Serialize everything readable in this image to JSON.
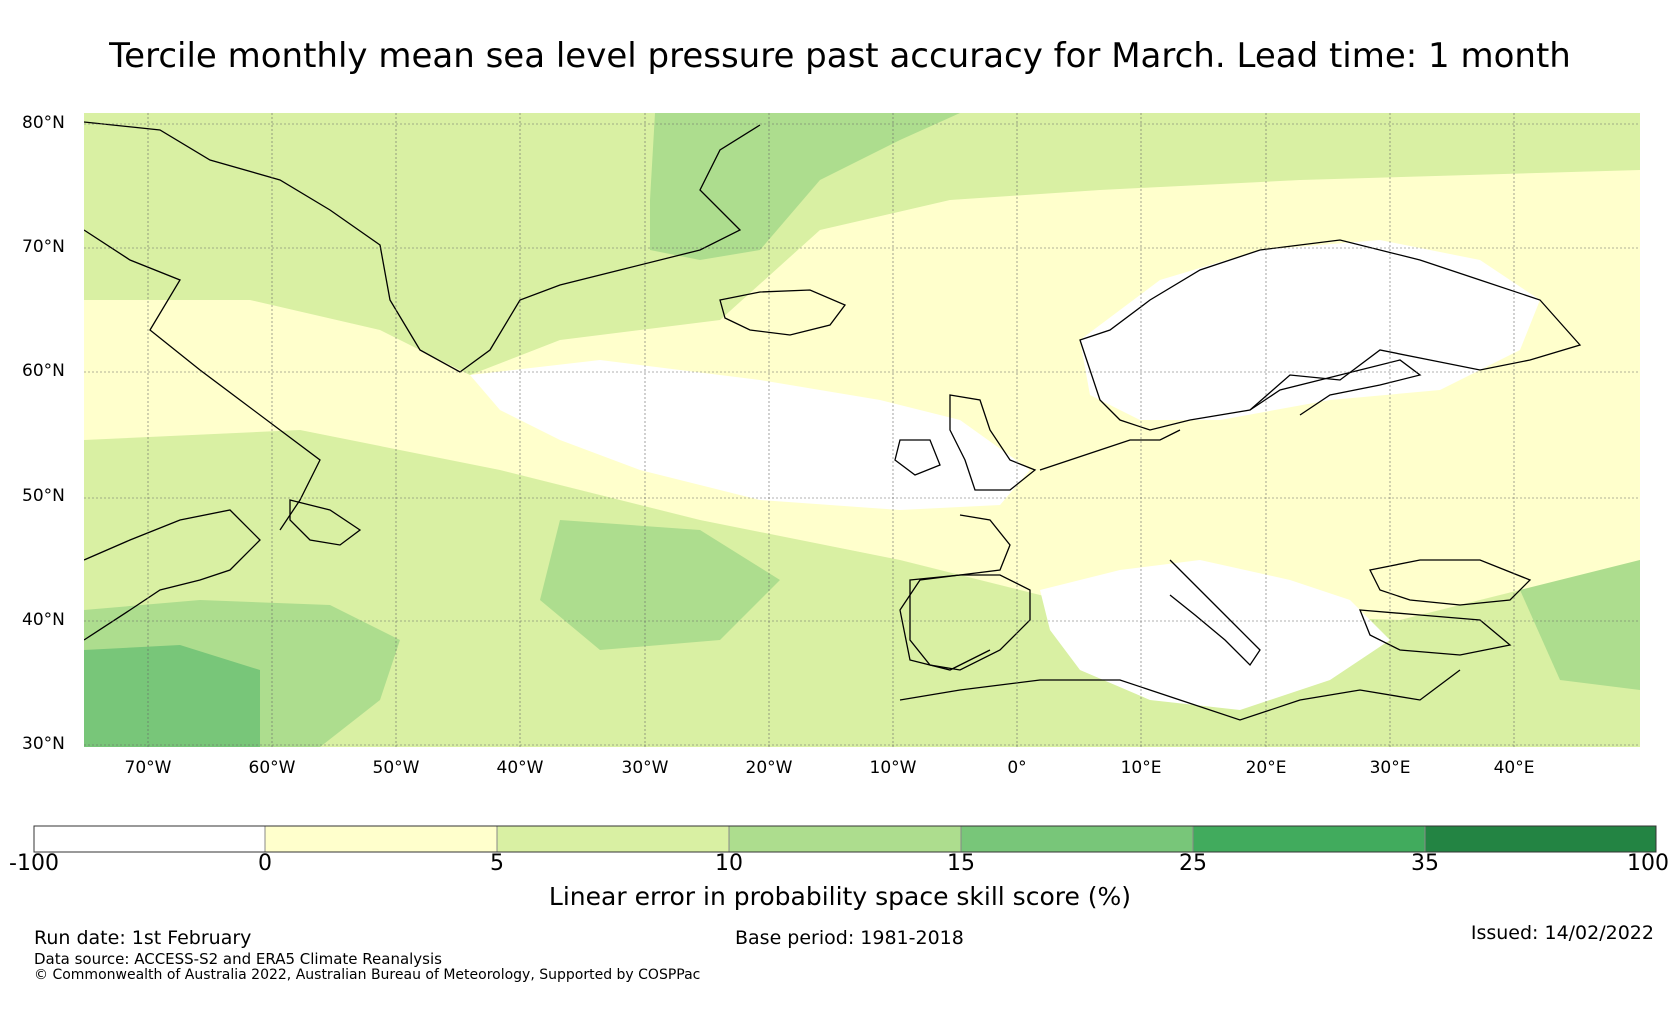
{
  "title": "Tercile monthly mean sea level pressure past accuracy for March. Lead time: 1 month",
  "map": {
    "lat_labels": [
      "80°N",
      "70°N",
      "60°N",
      "50°N",
      "40°N",
      "30°N"
    ],
    "lon_labels": [
      "70°W",
      "60°W",
      "50°W",
      "40°W",
      "30°W",
      "20°W",
      "10°W",
      "0°",
      "10°E",
      "20°E",
      "30°E",
      "40°E"
    ],
    "extent": {
      "lon_min": -75,
      "lon_max": 50,
      "lat_min": 30,
      "lat_max": 81
    },
    "regions": [
      {
        "name": "greenland",
        "category": 2
      },
      {
        "name": "greenland-east-coast",
        "category": 3
      },
      {
        "name": "north-atlantic-white-band",
        "category": 0
      },
      {
        "name": "scandinavia",
        "category": 0
      },
      {
        "name": "mediterranean",
        "category": 0
      },
      {
        "name": "western-atlantic",
        "category": 4
      },
      {
        "name": "east-mediterranean",
        "category": 3
      }
    ]
  },
  "colorbar": {
    "ticks": [
      "-100",
      "0",
      "5",
      "10",
      "15",
      "25",
      "35",
      "100"
    ],
    "colors": [
      "#ffffff",
      "#ffffcc",
      "#d9f0a3",
      "#addd8e",
      "#78c679",
      "#41ab5d",
      "#238443"
    ],
    "label": "Linear error in probability space skill score (%)"
  },
  "footer": {
    "run_date": "Run date: 1st February",
    "base_period": "Base period: 1981-2018",
    "issued": "Issued: 14/02/2022",
    "data_source": "Data source: ACCESS-S2 and ERA5 Climate Reanalysis",
    "copyright": "© Commonwealth of Australia 2022, Australian Bureau of Meteorology, Supported by COSPPac"
  }
}
